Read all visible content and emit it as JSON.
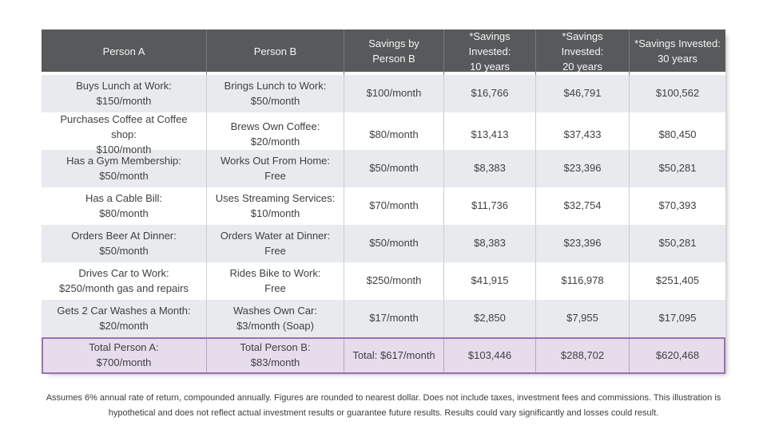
{
  "colors": {
    "header_bg": "#58595B",
    "header_text": "#F5F5F5",
    "row_alt_bg": "#E9EAEE",
    "row_plain_bg": "#FFFFFF",
    "total_row_bg": "#E6DCEC",
    "total_row_border": "#9C6FB5",
    "body_text": "#414042"
  },
  "chart_data": {
    "type": "table",
    "title": "",
    "columns": [
      "Person A",
      "Person B",
      "Savings by\nPerson B",
      "*Savings Invested:\n10 years",
      "*Savings Invested:\n20 years",
      "*Savings Invested:\n30 years"
    ],
    "rows": [
      [
        "Buys Lunch at Work:\n$150/month",
        "Brings Lunch to Work:\n$50/month",
        "$100/month",
        "$16,766",
        "$46,791",
        "$100,562"
      ],
      [
        "Purchases Coffee at Coffee shop:\n$100/month",
        "Brews Own Coffee:\n$20/month",
        "$80/month",
        "$13,413",
        "$37,433",
        "$80,450"
      ],
      [
        "Has a Gym Membership:\n$50/month",
        "Works Out From Home:\nFree",
        "$50/month",
        "$8,383",
        "$23,396",
        "$50,281"
      ],
      [
        "Has a Cable Bill:\n$80/month",
        "Uses Streaming Services:\n$10/month",
        "$70/month",
        "$11,736",
        "$32,754",
        "$70,393"
      ],
      [
        "Orders Beer At Dinner:\n$50/month",
        "Orders Water at Dinner:\nFree",
        "$50/month",
        "$8,383",
        "$23,396",
        "$50,281"
      ],
      [
        "Drives Car to Work:\n$250/month gas and repairs",
        "Rides Bike to Work:\nFree",
        "$250/month",
        "$41,915",
        "$116,978",
        "$251,405"
      ],
      [
        "Gets 2 Car Washes a Month:\n$20/month",
        "Washes Own Car:\n$3/month  (Soap)",
        "$17/month",
        "$2,850",
        "$7,955",
        "$17,095"
      ]
    ],
    "total_row": [
      "Total Person A:\n$700/month",
      "Total Person B:\n$83/month",
      "Total: $617/month",
      "$103,446",
      "$288,702",
      "$620,468"
    ],
    "footnote": "Assumes 6% annual rate of return, compounded annually. Figures are rounded to nearest dollar. Does not include taxes, investment fees and commissions. This illustration is hypothetical and does not reflect actual investment results or guarantee future results. Results could vary significantly and losses could result."
  }
}
